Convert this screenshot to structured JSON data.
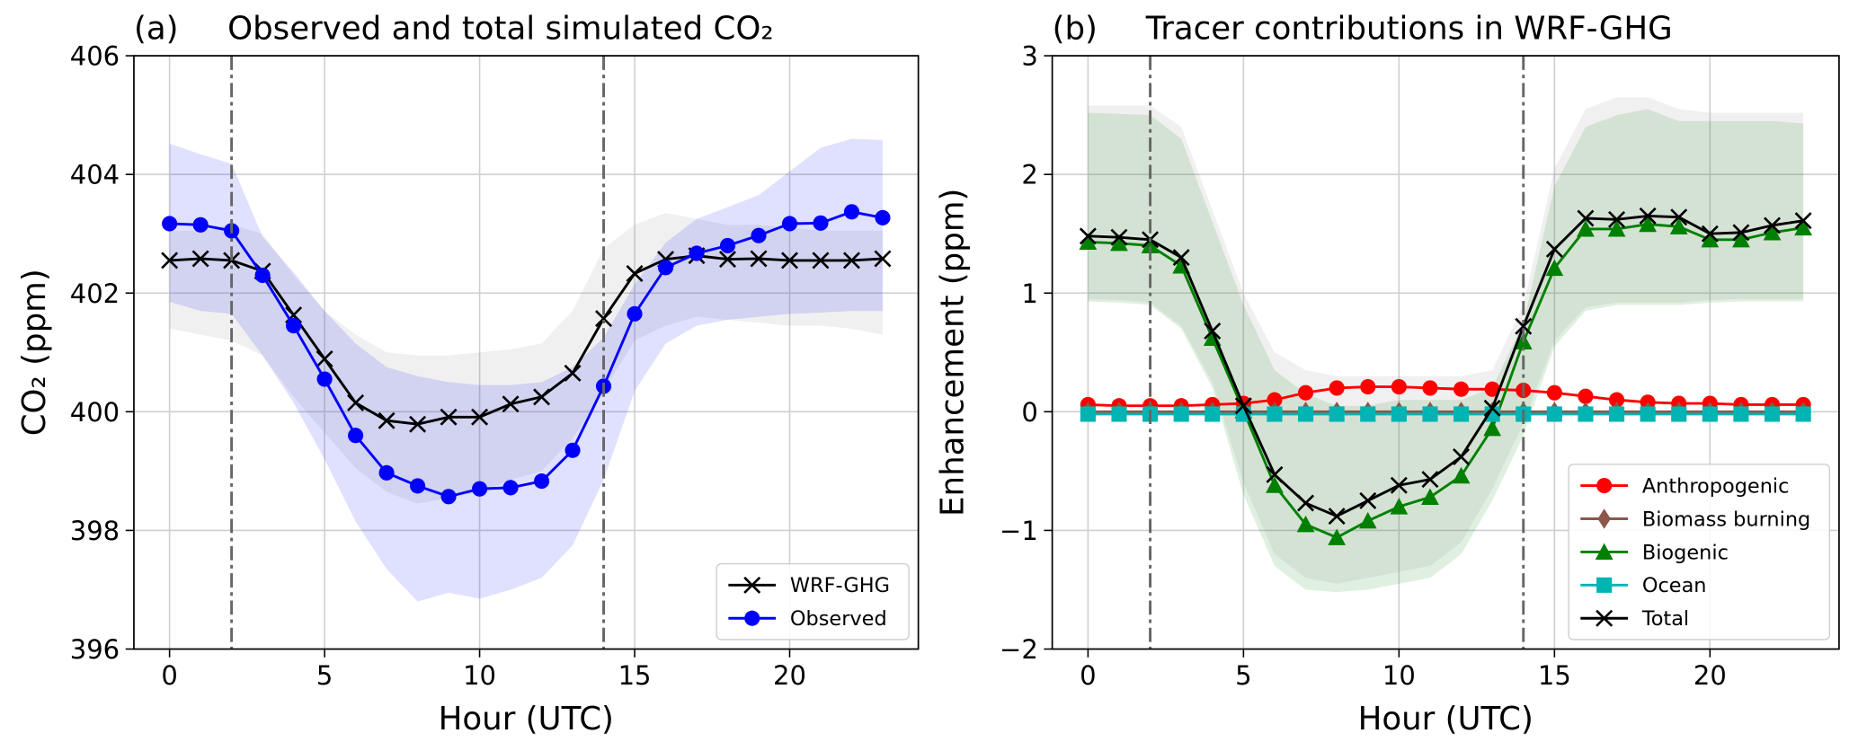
{
  "chart_data": [
    {
      "type": "line",
      "label": "(a)",
      "title": "Observed and total simulated CO₂",
      "x_label": "Hour (UTC)",
      "y_label": "CO₂ (ppm)",
      "x": [
        0,
        1,
        2,
        3,
        4,
        5,
        6,
        7,
        8,
        9,
        10,
        11,
        12,
        13,
        14,
        15,
        16,
        17,
        18,
        19,
        20,
        21,
        22,
        23
      ],
      "xlim": [
        -1.15,
        24.15
      ],
      "xticks": [
        0,
        5,
        10,
        15,
        20
      ],
      "ylim": [
        396,
        406
      ],
      "yticks": [
        396,
        398,
        400,
        402,
        404,
        406
      ],
      "grid": true,
      "vlines": [
        2,
        14
      ],
      "legend": "lower right",
      "series": [
        {
          "name": "WRF-GHG",
          "color": "#000000",
          "marker": "x",
          "band_color": "#808080",
          "values": [
            402.55,
            402.58,
            402.55,
            402.37,
            401.63,
            400.89,
            400.15,
            399.85,
            399.79,
            399.91,
            399.91,
            400.13,
            400.25,
            400.65,
            401.57,
            402.33,
            402.57,
            402.63,
            402.57,
            402.58,
            402.55,
            402.55,
            402.55,
            402.58
          ],
          "band_upper": [
            403.05,
            403.05,
            403.15,
            403.0,
            402.3,
            401.7,
            401.3,
            401.0,
            400.95,
            400.95,
            401.0,
            401.05,
            401.15,
            401.7,
            402.75,
            403.15,
            403.35,
            403.25,
            403.15,
            403.15,
            403.1,
            403.05,
            403.05,
            403.05
          ],
          "band_lower": [
            401.4,
            401.3,
            401.2,
            400.95,
            400.25,
            399.65,
            399.05,
            398.65,
            398.45,
            398.55,
            398.65,
            398.85,
            399.0,
            399.55,
            400.35,
            401.2,
            401.45,
            401.6,
            401.55,
            401.5,
            401.45,
            401.45,
            401.4,
            401.3
          ]
        },
        {
          "name": "Observed",
          "color": "#0000ff",
          "marker": "circle",
          "band_color": "#0000ff",
          "values": [
            403.17,
            403.15,
            403.05,
            402.3,
            401.45,
            400.55,
            399.6,
            398.97,
            398.75,
            398.57,
            398.7,
            398.72,
            398.83,
            399.35,
            400.43,
            401.65,
            402.43,
            402.67,
            402.8,
            402.97,
            403.17,
            403.18,
            403.37,
            403.27
          ],
          "band_upper": [
            404.52,
            404.34,
            404.18,
            402.95,
            402.35,
            401.7,
            401.15,
            400.75,
            400.6,
            400.5,
            400.45,
            400.45,
            400.5,
            400.75,
            401.25,
            402.15,
            402.85,
            403.25,
            403.45,
            403.65,
            404.05,
            404.45,
            404.6,
            404.58
          ],
          "band_lower": [
            401.85,
            401.7,
            401.65,
            400.95,
            400.15,
            399.2,
            398.15,
            397.35,
            396.8,
            396.95,
            396.85,
            397.0,
            397.2,
            397.75,
            398.85,
            400.35,
            401.15,
            401.45,
            401.55,
            401.6,
            401.65,
            401.67,
            401.7,
            401.7
          ]
        }
      ]
    },
    {
      "type": "line",
      "label": "(b)",
      "title": "Tracer contributions in WRF-GHG",
      "x_label": "Hour (UTC)",
      "y_label": "Enhancement (ppm)",
      "x": [
        0,
        1,
        2,
        3,
        4,
        5,
        6,
        7,
        8,
        9,
        10,
        11,
        12,
        13,
        14,
        15,
        16,
        17,
        18,
        19,
        20,
        21,
        22,
        23
      ],
      "xlim": [
        -1.15,
        24.15
      ],
      "xticks": [
        0,
        5,
        10,
        15,
        20
      ],
      "ylim": [
        -2,
        3
      ],
      "yticks": [
        {
          "value": -2,
          "label": "−2"
        },
        {
          "value": -1,
          "label": "−1"
        },
        0,
        1,
        2,
        3
      ],
      "grid": true,
      "vlines": [
        2,
        14
      ],
      "legend": "lower right",
      "series": [
        {
          "name": "Anthropogenic",
          "color": "#ff0000",
          "marker": "circle",
          "values": [
            0.06,
            0.05,
            0.05,
            0.05,
            0.06,
            0.07,
            0.1,
            0.16,
            0.2,
            0.21,
            0.21,
            0.2,
            0.19,
            0.19,
            0.18,
            0.16,
            0.13,
            0.1,
            0.08,
            0.07,
            0.07,
            0.06,
            0.06,
            0.06
          ]
        },
        {
          "name": "Biomass burning",
          "color": "#8c564b",
          "marker": "diamond",
          "values": [
            0,
            0,
            0,
            0,
            0,
            0,
            0,
            0,
            0,
            0,
            0,
            0,
            0,
            0,
            0,
            0,
            0,
            0,
            0,
            0,
            0,
            0,
            0,
            0
          ]
        },
        {
          "name": "Biogenic",
          "color": "#008000",
          "marker": "triangle",
          "band_color": "#008000",
          "values": [
            1.43,
            1.42,
            1.4,
            1.23,
            0.62,
            0.01,
            -0.62,
            -0.95,
            -1.06,
            -0.92,
            -0.8,
            -0.72,
            -0.54,
            -0.14,
            0.59,
            1.21,
            1.54,
            1.54,
            1.58,
            1.56,
            1.45,
            1.45,
            1.51,
            1.55
          ],
          "band_upper": [
            2.52,
            2.51,
            2.5,
            2.3,
            1.6,
            0.9,
            0.35,
            0.15,
            0.05,
            0.05,
            0.1,
            0.1,
            0.1,
            0.2,
            0.75,
            1.9,
            2.4,
            2.5,
            2.55,
            2.45,
            2.45,
            2.45,
            2.45,
            2.43
          ],
          "band_lower": [
            0.93,
            0.92,
            0.9,
            0.7,
            0.2,
            -0.7,
            -1.3,
            -1.5,
            -1.52,
            -1.5,
            -1.45,
            -1.4,
            -1.2,
            -0.75,
            -0.2,
            0.55,
            0.85,
            0.9,
            0.9,
            0.9,
            0.92,
            0.93,
            0.93,
            0.93
          ]
        },
        {
          "name": "Ocean",
          "color": "#00b4b4",
          "marker": "square",
          "values": [
            -0.02,
            -0.02,
            -0.02,
            -0.02,
            -0.02,
            -0.02,
            -0.02,
            -0.02,
            -0.02,
            -0.02,
            -0.02,
            -0.02,
            -0.02,
            -0.02,
            -0.02,
            -0.02,
            -0.02,
            -0.02,
            -0.02,
            -0.02,
            -0.02,
            -0.02,
            -0.02,
            -0.02
          ]
        },
        {
          "name": "Total",
          "color": "#000000",
          "marker": "x",
          "band_color": "#808080",
          "values": [
            1.48,
            1.47,
            1.45,
            1.3,
            0.68,
            0.05,
            -0.53,
            -0.77,
            -0.88,
            -0.75,
            -0.62,
            -0.57,
            -0.38,
            0.03,
            0.72,
            1.37,
            1.63,
            1.62,
            1.65,
            1.64,
            1.5,
            1.51,
            1.57,
            1.61
          ],
          "band_upper": [
            2.58,
            2.58,
            2.58,
            2.4,
            1.7,
            1.0,
            0.5,
            0.35,
            0.3,
            0.3,
            0.3,
            0.3,
            0.3,
            0.35,
            0.9,
            2.05,
            2.55,
            2.65,
            2.65,
            2.55,
            2.52,
            2.52,
            2.52,
            2.52
          ],
          "band_lower": [
            0.95,
            0.94,
            0.92,
            0.72,
            0.25,
            -0.6,
            -1.2,
            -1.4,
            -1.45,
            -1.4,
            -1.35,
            -1.3,
            -1.1,
            -0.65,
            -0.1,
            0.6,
            0.88,
            0.92,
            0.92,
            0.92,
            0.94,
            0.95,
            0.95,
            0.95
          ]
        }
      ]
    }
  ]
}
